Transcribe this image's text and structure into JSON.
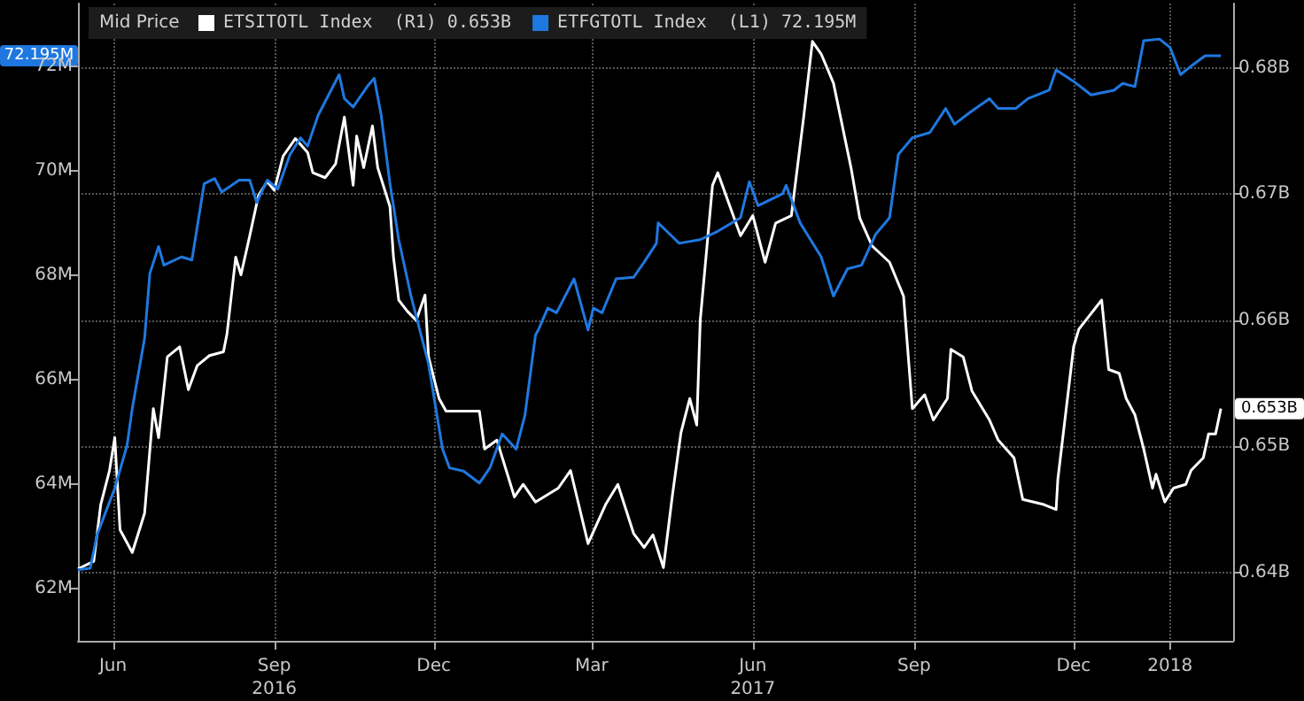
{
  "chart_data": {
    "type": "line",
    "legend_title": "Mid Price",
    "legend": "top left",
    "grid": true,
    "marker": "none",
    "xlim": [
      "2016-05-26",
      "2018-03-16"
    ],
    "xticks": [
      {
        "value": "2016-06-15",
        "label": "Jun"
      },
      {
        "value": "2016-09-15",
        "label": "Sep\n2016"
      },
      {
        "value": "2016-12-15",
        "label": "Dec"
      },
      {
        "value": "2017-03-15",
        "label": "Mar"
      },
      {
        "value": "2017-06-15",
        "label": "Jun\n2017"
      },
      {
        "value": "2017-09-15",
        "label": "Sep"
      },
      {
        "value": "2017-12-15",
        "label": "Dec"
      },
      {
        "value": "2018-02-08",
        "label": "2018"
      }
    ],
    "ylim": [
      61,
      73.2
    ],
    "yticks": [
      {
        "value": 62,
        "label": "62M"
      },
      {
        "value": 64,
        "label": "64M"
      },
      {
        "value": 66,
        "label": "66M"
      },
      {
        "value": 68,
        "label": "68M"
      },
      {
        "value": 70,
        "label": "70M"
      },
      {
        "value": 72,
        "label": "72M"
      }
    ],
    "y2lim": [
      0.6346,
      0.6851
    ],
    "y2ticks": [
      {
        "value": 0.64,
        "label": "0.64B"
      },
      {
        "value": 0.65,
        "label": "0.65B"
      },
      {
        "value": 0.66,
        "label": "0.66B"
      },
      {
        "value": 0.67,
        "label": "0.67B"
      },
      {
        "value": 0.68,
        "label": "0.68B"
      }
    ],
    "annotations": [
      "0.653B",
      "72.195M"
    ],
    "series": [
      {
        "name": "ETSITOTL Index  (R1) 0.653B",
        "color": "#ffffff",
        "axis": "y2",
        "x": [
          "2016-05-26",
          "2016-06-04",
          "2016-06-08",
          "2016-06-13",
          "2016-06-16",
          "2016-06-19",
          "2016-06-26",
          "2016-07-03",
          "2016-07-08",
          "2016-07-11",
          "2016-07-16",
          "2016-07-23",
          "2016-07-28",
          "2016-08-02",
          "2016-08-09",
          "2016-08-17",
          "2016-08-19",
          "2016-08-24",
          "2016-08-27",
          "2016-09-01",
          "2016-09-06",
          "2016-09-11",
          "2016-09-15",
          "2016-09-20",
          "2016-09-27",
          "2016-10-04",
          "2016-10-07",
          "2016-10-14",
          "2016-10-20",
          "2016-10-25",
          "2016-10-30",
          "2016-11-01",
          "2016-11-05",
          "2016-11-10",
          "2016-11-13",
          "2016-11-20",
          "2016-11-22",
          "2016-11-25",
          "2016-11-30",
          "2016-12-05",
          "2016-12-10",
          "2016-12-12",
          "2016-12-18",
          "2016-12-22",
          "2017-01-10",
          "2017-01-13",
          "2017-01-20",
          "2017-01-30",
          "2017-02-04",
          "2017-02-11",
          "2017-02-24",
          "2017-03-03",
          "2017-03-13",
          "2017-03-23",
          "2017-03-30",
          "2017-04-08",
          "2017-04-14",
          "2017-04-19",
          "2017-04-25",
          "2017-04-30",
          "2017-05-05",
          "2017-05-10",
          "2017-05-14",
          "2017-05-16",
          "2017-05-23",
          "2017-05-26",
          "2017-06-02",
          "2017-06-08",
          "2017-06-15",
          "2017-06-22",
          "2017-06-28",
          "2017-07-07",
          "2017-07-14",
          "2017-07-19",
          "2017-07-24",
          "2017-07-31",
          "2017-08-10",
          "2017-08-15",
          "2017-08-22",
          "2017-09-01",
          "2017-09-09",
          "2017-09-14",
          "2017-09-21",
          "2017-09-26",
          "2017-10-04",
          "2017-10-06",
          "2017-10-13",
          "2017-10-18",
          "2017-10-28",
          "2017-11-02",
          "2017-11-11",
          "2017-11-16",
          "2017-11-28",
          "2017-12-05",
          "2017-12-06",
          "2017-12-15",
          "2017-12-18",
          "2017-12-31",
          "2018-01-04",
          "2018-01-10",
          "2018-01-14",
          "2018-01-19",
          "2018-01-24",
          "2018-01-29",
          "2018-01-31",
          "2018-02-05",
          "2018-02-10",
          "2018-02-17",
          "2018-02-20",
          "2018-02-27",
          "2018-03-02",
          "2018-03-06",
          "2018-03-09"
        ],
        "values": [
          0.6403,
          0.6409,
          0.6454,
          0.6481,
          0.6507,
          0.6434,
          0.6416,
          0.6447,
          0.653,
          0.6507,
          0.6571,
          0.6579,
          0.6545,
          0.6564,
          0.6572,
          0.6575,
          0.6589,
          0.665,
          0.6636,
          0.6667,
          0.6699,
          0.671,
          0.6703,
          0.673,
          0.6744,
          0.6733,
          0.6717,
          0.6713,
          0.6724,
          0.6761,
          0.6707,
          0.6746,
          0.6721,
          0.6754,
          0.6721,
          0.669,
          0.665,
          0.6616,
          0.6607,
          0.66,
          0.662,
          0.6571,
          0.6538,
          0.6528,
          0.6528,
          0.6498,
          0.6505,
          0.646,
          0.647,
          0.6456,
          0.6467,
          0.6481,
          0.6423,
          0.6454,
          0.647,
          0.6431,
          0.642,
          0.643,
          0.6404,
          0.646,
          0.6511,
          0.6538,
          0.6517,
          0.66,
          0.6707,
          0.6717,
          0.669,
          0.6667,
          0.6683,
          0.6646,
          0.6677,
          0.6683,
          0.6761,
          0.6821,
          0.6811,
          0.6788,
          0.6721,
          0.6681,
          0.6659,
          0.6646,
          0.6619,
          0.653,
          0.6541,
          0.6521,
          0.6538,
          0.6577,
          0.6571,
          0.6544,
          0.6521,
          0.6505,
          0.6491,
          0.6458,
          0.6454,
          0.645,
          0.6474,
          0.6579,
          0.6593,
          0.6616,
          0.6561,
          0.6558,
          0.6538,
          0.6525,
          0.6498,
          0.6467,
          0.6478,
          0.6456,
          0.6467,
          0.647,
          0.6481,
          0.6491,
          0.651,
          0.651,
          0.653
        ]
      },
      {
        "name": "ETFGTOTL Index  (L1) 72.195M",
        "color": "#1f78e0",
        "x": [
          "2016-05-26",
          "2016-06-02",
          "2016-06-06",
          "2016-06-16",
          "2016-06-23",
          "2016-06-26",
          "2016-07-03",
          "2016-07-06",
          "2016-07-11",
          "2016-07-14",
          "2016-07-24",
          "2016-07-30",
          "2016-08-06",
          "2016-08-12",
          "2016-08-16",
          "2016-08-26",
          "2016-09-01",
          "2016-09-05",
          "2016-09-11",
          "2016-09-17",
          "2016-09-24",
          "2016-09-30",
          "2016-10-04",
          "2016-10-10",
          "2016-10-22",
          "2016-10-25",
          "2016-10-30",
          "2016-11-07",
          "2016-11-11",
          "2016-11-15",
          "2016-11-20",
          "2016-11-25",
          "2016-12-02",
          "2016-12-07",
          "2016-12-12",
          "2016-12-20",
          "2016-12-24",
          "2017-01-01",
          "2017-01-10",
          "2017-01-16",
          "2017-01-23",
          "2017-01-31",
          "2017-02-05",
          "2017-02-11",
          "2017-02-13",
          "2017-02-18",
          "2017-02-23",
          "2017-03-05",
          "2017-03-13",
          "2017-03-16",
          "2017-03-21",
          "2017-03-29",
          "2017-04-08",
          "2017-04-14",
          "2017-04-21",
          "2017-04-22",
          "2017-05-04",
          "2017-05-16",
          "2017-05-26",
          "2017-06-08",
          "2017-06-13",
          "2017-06-18",
          "2017-07-02",
          "2017-07-04",
          "2017-07-12",
          "2017-07-24",
          "2017-07-31",
          "2017-08-08",
          "2017-08-16",
          "2017-08-24",
          "2017-09-01",
          "2017-09-06",
          "2017-09-14",
          "2017-09-24",
          "2017-10-03",
          "2017-10-08",
          "2017-10-17",
          "2017-10-28",
          "2017-11-02",
          "2017-11-12",
          "2017-11-19",
          "2017-12-01",
          "2017-12-05",
          "2017-12-15",
          "2017-12-25",
          "2018-01-07",
          "2018-01-12",
          "2018-01-19",
          "2018-01-24",
          "2018-02-02",
          "2018-02-08",
          "2018-02-14",
          "2018-02-20",
          "2018-02-28",
          "2018-03-09"
        ],
        "values": [
          62.36,
          62.39,
          63.04,
          63.92,
          64.74,
          65.45,
          66.79,
          68.03,
          68.55,
          68.19,
          68.35,
          68.29,
          69.75,
          69.85,
          69.59,
          69.82,
          69.82,
          69.39,
          69.82,
          69.65,
          70.31,
          70.63,
          70.47,
          71.06,
          71.84,
          71.38,
          71.22,
          71.61,
          71.77,
          71.06,
          69.75,
          68.68,
          67.6,
          66.95,
          66.3,
          64.67,
          64.31,
          64.25,
          64.02,
          64.31,
          64.96,
          64.67,
          65.32,
          66.85,
          66.98,
          67.37,
          67.28,
          67.93,
          66.95,
          67.37,
          67.28,
          67.93,
          67.96,
          68.25,
          68.61,
          69.0,
          68.61,
          68.68,
          68.84,
          69.1,
          69.79,
          69.33,
          69.56,
          69.72,
          69.0,
          68.35,
          67.6,
          68.12,
          68.19,
          68.78,
          69.1,
          70.31,
          70.63,
          70.73,
          71.19,
          70.89,
          71.12,
          71.38,
          71.19,
          71.19,
          71.38,
          71.54,
          71.93,
          71.71,
          71.45,
          71.54,
          71.67,
          71.61,
          72.49,
          72.52,
          72.36,
          71.84,
          72.0,
          72.2,
          72.2
        ]
      }
    ]
  }
}
